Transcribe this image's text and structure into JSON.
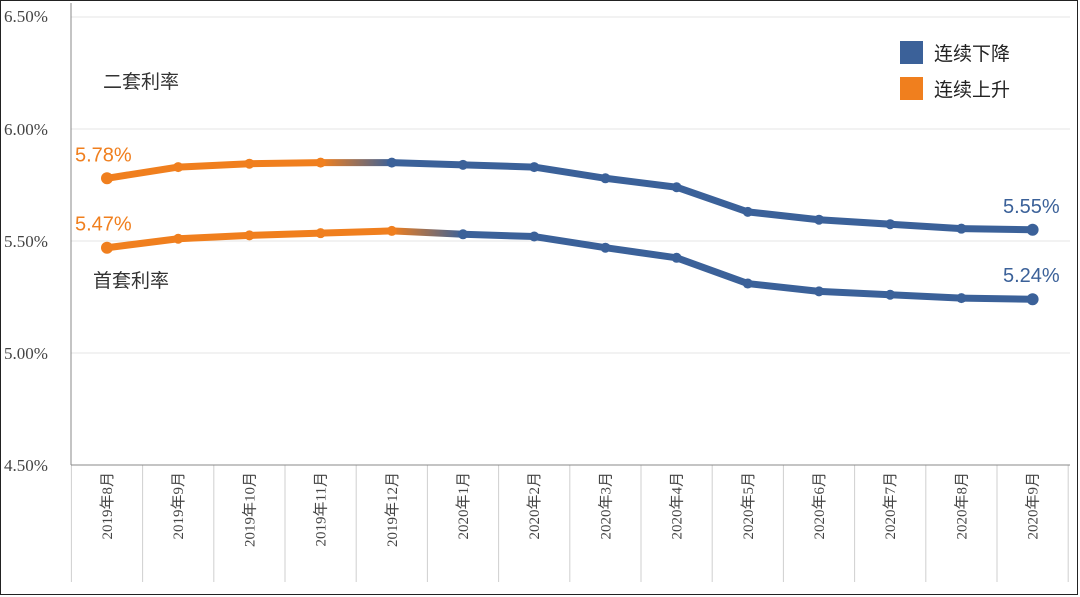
{
  "chart_data": {
    "type": "line",
    "categories": [
      "2019年8月",
      "2019年9月",
      "2019年10月",
      "2019年11月",
      "2019年12月",
      "2020年1月",
      "2020年2月",
      "2020年3月",
      "2020年4月",
      "2020年5月",
      "2020年6月",
      "2020年7月",
      "2020年8月",
      "2020年9月"
    ],
    "series": [
      {
        "name": "二套利率",
        "values": [
          5.78,
          5.83,
          5.845,
          5.85,
          5.85,
          5.84,
          5.83,
          5.78,
          5.74,
          5.63,
          5.595,
          5.575,
          5.555,
          5.55
        ]
      },
      {
        "name": "首套利率",
        "values": [
          5.47,
          5.51,
          5.525,
          5.535,
          5.545,
          5.53,
          5.52,
          5.47,
          5.425,
          5.31,
          5.275,
          5.26,
          5.245,
          5.24
        ]
      }
    ],
    "yticks": [
      "6.50%",
      "6.00%",
      "5.50%",
      "5.00%",
      "4.50%"
    ],
    "ytick_values": [
      6.5,
      6.0,
      5.5,
      5.0,
      4.5
    ],
    "ylim": [
      4.5,
      6.5
    ],
    "grid": true,
    "legend_position": "top-right",
    "rising_until_index": 4,
    "data_labels": [
      {
        "series": 0,
        "index": 0,
        "text": "5.78%"
      },
      {
        "series": 1,
        "index": 0,
        "text": "5.47%"
      },
      {
        "series": 0,
        "index": 13,
        "text": "5.55%"
      },
      {
        "series": 1,
        "index": 13,
        "text": "5.24%"
      }
    ],
    "series_labels": [
      "二套利率",
      "首套利率"
    ],
    "legend": [
      {
        "label": "连续下降",
        "color": "#3b6199"
      },
      {
        "label": "连续上升",
        "color": "#f07f1e"
      }
    ]
  },
  "colors": {
    "falling": "#3b6199",
    "rising": "#f07f1e",
    "grid": "#e6e6e6",
    "axis": "#888888"
  }
}
